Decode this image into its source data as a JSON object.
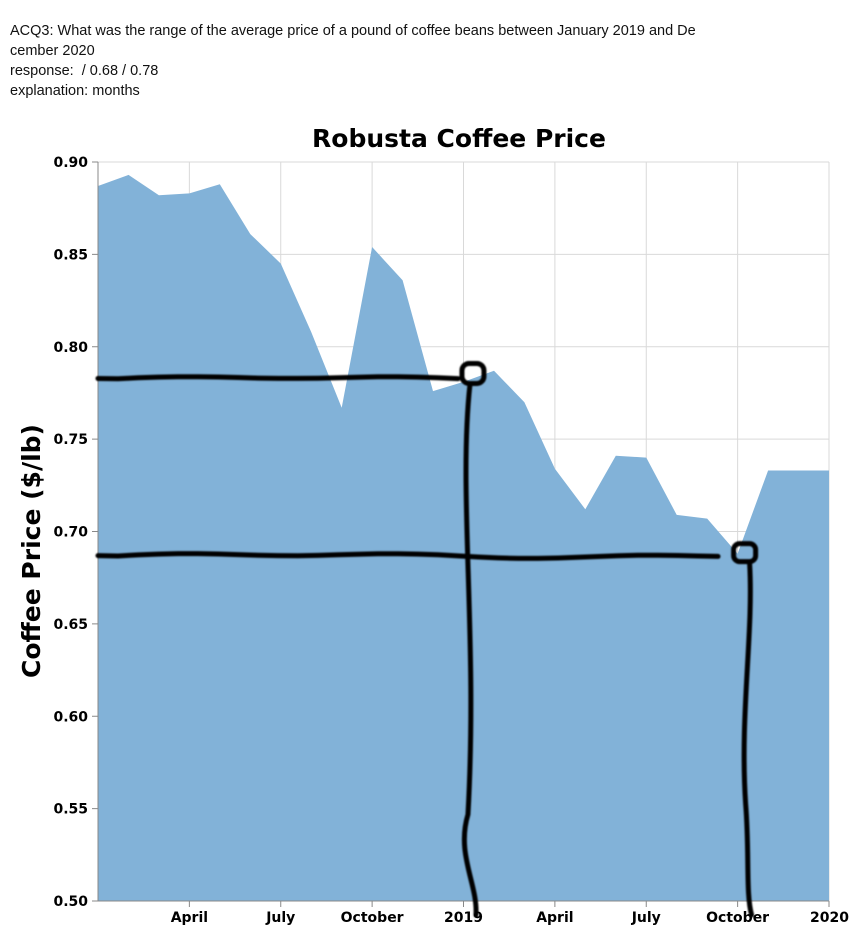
{
  "header": {
    "question_prefix": "ACQ3:",
    "question": "What was the range of the average price of a pound of coffee beans between January 2019 and De\ncember 2020",
    "response_label": "response:",
    "response": " / 0.68 / 0.78",
    "explanation_label": "explanation:",
    "explanation": "months"
  },
  "chart_data": {
    "type": "area",
    "title": "Robusta Coffee Price",
    "ylabel": "Coffee Price ($/lb)",
    "xlabel": "",
    "x_ticks": [
      "April",
      "July",
      "October",
      "2019",
      "April",
      "July",
      "October",
      "2020"
    ],
    "y_ticks": [
      "0.90",
      "0.85",
      "0.80",
      "0.75",
      "0.70",
      "0.65",
      "0.60",
      "0.55",
      "0.50"
    ],
    "ylim": [
      0.5,
      0.9
    ],
    "x_range": [
      "2018-01",
      "2020-01"
    ],
    "grid": true,
    "color": "#82b2d8",
    "x": [
      "2018-01",
      "2018-02",
      "2018-03",
      "2018-04",
      "2018-05",
      "2018-06",
      "2018-07",
      "2018-08",
      "2018-09",
      "2018-10",
      "2018-11",
      "2018-12",
      "2019-01",
      "2019-02",
      "2019-03",
      "2019-04",
      "2019-05",
      "2019-06",
      "2019-07",
      "2019-08",
      "2019-09",
      "2019-10",
      "2019-11",
      "2019-12",
      "2020-01"
    ],
    "values": [
      0.887,
      0.893,
      0.882,
      0.883,
      0.888,
      0.861,
      0.845,
      0.808,
      0.767,
      0.854,
      0.836,
      0.776,
      0.781,
      0.787,
      0.77,
      0.734,
      0.712,
      0.741,
      0.74,
      0.709,
      0.707,
      0.688,
      0.733,
      0.733,
      0.733
    ],
    "annotations": {
      "ink_color": "#000000",
      "horizontal_lines_at": [
        0.785,
        0.688
      ],
      "circled_points": [
        "2019-02",
        "2019-10"
      ]
    }
  }
}
